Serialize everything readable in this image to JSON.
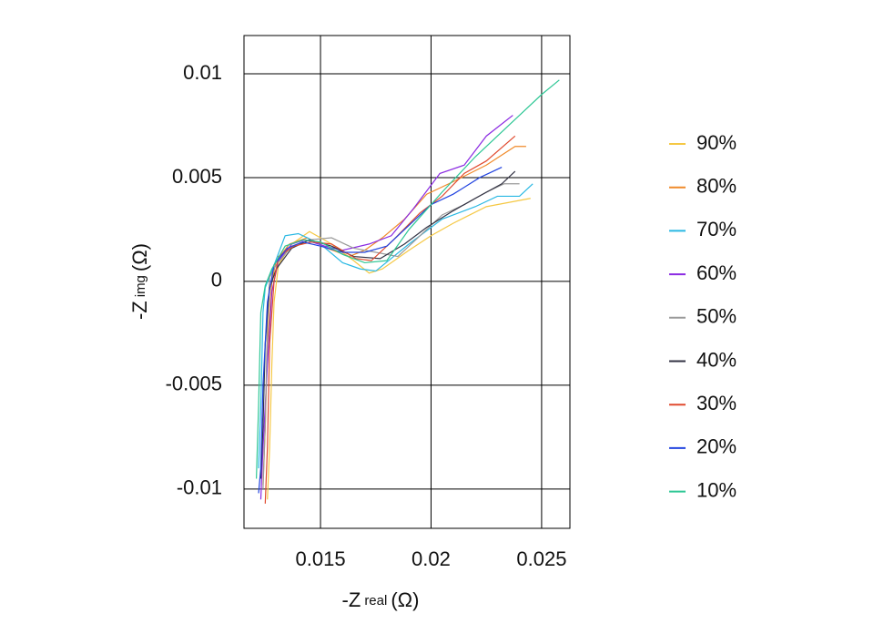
{
  "chart_data": {
    "type": "line",
    "xlabel_parts": [
      "-Z",
      "real",
      "(Ω)"
    ],
    "ylabel_parts": [
      "-Z",
      "img",
      "(Ω)"
    ],
    "xlim": [
      0.01154,
      0.02628
    ],
    "ylim": [
      -0.01189,
      0.01184
    ],
    "xticks": [
      0.015,
      0.02,
      0.025
    ],
    "yticks": [
      0.01,
      0.005,
      0,
      -0.005,
      -0.01
    ],
    "grid": true,
    "legend": "right",
    "series": [
      {
        "name": "90%",
        "color": "#f5c844",
        "x": [
          0.0126,
          0.0127,
          0.0128,
          0.0129,
          0.0131,
          0.0137,
          0.0145,
          0.0155,
          0.0165,
          0.0172,
          0.0178,
          0.019,
          0.02,
          0.021,
          0.0225,
          0.0245
        ],
        "values": [
          -0.0105,
          -0.008,
          -0.004,
          -0.001,
          0.0008,
          0.0018,
          0.0024,
          0.0018,
          0.001,
          0.0004,
          0.0006,
          0.0015,
          0.0022,
          0.0028,
          0.0036,
          0.004
        ]
      },
      {
        "name": "80%",
        "color": "#f08a2a",
        "x": [
          0.0124,
          0.0125,
          0.0126,
          0.0128,
          0.013,
          0.0136,
          0.0144,
          0.0153,
          0.0163,
          0.017,
          0.0178,
          0.0188,
          0.0198,
          0.021,
          0.0225,
          0.0238,
          0.0243
        ],
        "values": [
          -0.0098,
          -0.007,
          -0.003,
          0,
          0.001,
          0.0018,
          0.0021,
          0.0016,
          0.0012,
          0.0015,
          0.0021,
          0.003,
          0.0042,
          0.0048,
          0.0056,
          0.0065,
          0.0065
        ]
      },
      {
        "name": "70%",
        "color": "#29b8e3",
        "x": [
          0.0122,
          0.0123,
          0.0124,
          0.0125,
          0.0128,
          0.0134,
          0.014,
          0.015,
          0.016,
          0.0168,
          0.0175,
          0.019,
          0.0205,
          0.022,
          0.023,
          0.024,
          0.0246
        ],
        "values": [
          -0.009,
          -0.006,
          -0.0015,
          -0.0003,
          0.0005,
          0.0022,
          0.0023,
          0.0018,
          0.0009,
          0.0006,
          0.0005,
          0.0018,
          0.003,
          0.0036,
          0.0041,
          0.0041,
          0.0047
        ]
      },
      {
        "name": "60%",
        "color": "#8b2be2",
        "x": [
          0.0123,
          0.0124,
          0.0126,
          0.0128,
          0.0131,
          0.0137,
          0.0143,
          0.0152,
          0.016,
          0.0172,
          0.0182,
          0.0192,
          0.0204,
          0.0215,
          0.0225,
          0.0237
        ],
        "values": [
          -0.0105,
          -0.008,
          -0.004,
          -0.0005,
          0.001,
          0.0018,
          0.002,
          0.0017,
          0.0015,
          0.0018,
          0.0022,
          0.0035,
          0.0052,
          0.0056,
          0.007,
          0.008
        ]
      },
      {
        "name": "50%",
        "color": "#9a9a9a",
        "x": [
          0.0124,
          0.0125,
          0.0126,
          0.0127,
          0.013,
          0.0137,
          0.0145,
          0.0155,
          0.0165,
          0.0175,
          0.0185,
          0.0195,
          0.0205,
          0.0215,
          0.0225,
          0.0233,
          0.024
        ],
        "values": [
          -0.01,
          -0.007,
          -0.002,
          0.0002,
          0.0008,
          0.0017,
          0.002,
          0.0021,
          0.0016,
          0.0014,
          0.0012,
          0.0022,
          0.0032,
          0.0037,
          0.0043,
          0.0047,
          0.0047
        ]
      },
      {
        "name": "40%",
        "color": "#333344",
        "x": [
          0.0123,
          0.0124,
          0.0125,
          0.0127,
          0.013,
          0.0137,
          0.0145,
          0.0155,
          0.0165,
          0.0177,
          0.0188,
          0.0198,
          0.021,
          0.022,
          0.0232,
          0.0238
        ],
        "values": [
          -0.0095,
          -0.007,
          -0.003,
          -0.0003,
          0.0006,
          0.0016,
          0.002,
          0.0017,
          0.0012,
          0.0011,
          0.0018,
          0.0026,
          0.0034,
          0.004,
          0.0047,
          0.0053
        ]
      },
      {
        "name": "30%",
        "color": "#e04a2f",
        "x": [
          0.0125,
          0.0126,
          0.0127,
          0.0129,
          0.0131,
          0.0138,
          0.0146,
          0.0155,
          0.0166,
          0.0173,
          0.0183,
          0.0195,
          0.0205,
          0.0215,
          0.0225,
          0.0238
        ],
        "values": [
          -0.0107,
          -0.008,
          -0.003,
          0,
          0.0012,
          0.0017,
          0.0019,
          0.0018,
          0.0011,
          0.001,
          0.002,
          0.0033,
          0.0041,
          0.0052,
          0.0058,
          0.007
        ]
      },
      {
        "name": "20%",
        "color": "#2244e0",
        "x": [
          0.0122,
          0.0123,
          0.0124,
          0.0126,
          0.0129,
          0.0135,
          0.0142,
          0.015,
          0.016,
          0.017,
          0.018,
          0.019,
          0.02,
          0.021,
          0.0222,
          0.0232
        ],
        "values": [
          -0.0102,
          -0.009,
          -0.005,
          -0.001,
          0.0008,
          0.0016,
          0.0019,
          0.0017,
          0.0014,
          0.0014,
          0.0017,
          0.0027,
          0.0037,
          0.0042,
          0.005,
          0.0055
        ]
      },
      {
        "name": "10%",
        "color": "#2ec795",
        "x": [
          0.0121,
          0.0122,
          0.0123,
          0.0125,
          0.0128,
          0.0134,
          0.0142,
          0.015,
          0.016,
          0.017,
          0.018,
          0.019,
          0.0205,
          0.022,
          0.0235,
          0.025,
          0.0258
        ],
        "values": [
          -0.0095,
          -0.006,
          -0.0015,
          -0.0002,
          0.0006,
          0.0017,
          0.002,
          0.0019,
          0.0013,
          0.0009,
          0.001,
          0.0025,
          0.0043,
          0.006,
          0.0075,
          0.009,
          0.0097
        ]
      }
    ]
  }
}
